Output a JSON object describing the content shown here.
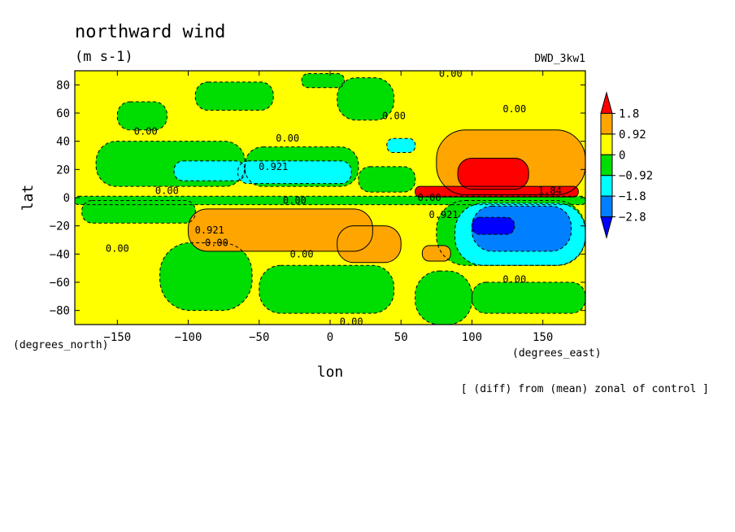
{
  "chart_data": {
    "type": "heatmap",
    "title": "northward wind",
    "units": "(m s-1)",
    "model_label": "DWD_3kw1",
    "xlabel": "lon",
    "ylabel": "lat",
    "x_units": "(degrees_east)",
    "y_units": "(degrees_north)",
    "footnote": "[ (diff) from (mean) zonal of control ]",
    "xlim": [
      -180,
      180
    ],
    "ylim": [
      -90,
      90
    ],
    "x_ticks": [
      -150,
      -100,
      -50,
      0,
      50,
      100,
      150
    ],
    "y_ticks": [
      -80,
      -60,
      -40,
      -20,
      0,
      20,
      40,
      60,
      80
    ],
    "x_tick_labels": [
      "−150",
      "−100",
      "−50",
      "0",
      "50",
      "100",
      "150"
    ],
    "y_tick_labels": [
      "−80",
      "−60",
      "−40",
      "−20",
      "0",
      "20",
      "40",
      "60",
      "80"
    ],
    "colorbar": {
      "levels": [
        "1.8",
        "0.92",
        "0",
        "−0.92",
        "−1.8",
        "−2.8"
      ],
      "colors": [
        "#ff0000",
        "#ffa500",
        "#ffff00",
        "#00dd00",
        "#00ffff",
        "#0080ff",
        "#0000ff"
      ]
    },
    "fill_colors": {
      "high": "#ff0000",
      "mid_high": "#ffa500",
      "pos": "#ffff00",
      "neg": "#00dd00",
      "mid_low": "#00ffff",
      "low": "#0080ff",
      "lowest": "#0000ff"
    },
    "regions": [
      {
        "level": "pos",
        "lon": [
          -180,
          180
        ],
        "lat": [
          -90,
          90
        ]
      },
      {
        "level": "neg",
        "lon": [
          -150,
          -115
        ],
        "lat": [
          48,
          68
        ]
      },
      {
        "level": "neg",
        "lon": [
          -95,
          -40
        ],
        "lat": [
          62,
          82
        ]
      },
      {
        "level": "neg",
        "lon": [
          5,
          45
        ],
        "lat": [
          55,
          85
        ]
      },
      {
        "level": "neg",
        "lon": [
          -20,
          10
        ],
        "lat": [
          78,
          88
        ]
      },
      {
        "level": "neg",
        "lon": [
          -165,
          -60
        ],
        "lat": [
          8,
          40
        ]
      },
      {
        "level": "neg",
        "lon": [
          -60,
          20
        ],
        "lat": [
          8,
          36
        ]
      },
      {
        "level": "neg",
        "lon": [
          20,
          60
        ],
        "lat": [
          4,
          22
        ]
      },
      {
        "level": "mid_low",
        "lon": [
          -110,
          -60
        ],
        "lat": [
          12,
          26
        ]
      },
      {
        "level": "mid_low",
        "lon": [
          -65,
          15
        ],
        "lat": [
          10,
          26
        ]
      },
      {
        "level": "mid_low",
        "lon": [
          40,
          60
        ],
        "lat": [
          32,
          42
        ]
      },
      {
        "level": "neg",
        "lon": [
          -180,
          180
        ],
        "lat": [
          -5,
          1
        ]
      },
      {
        "level": "neg",
        "lon": [
          -175,
          -95
        ],
        "lat": [
          -18,
          -2
        ]
      },
      {
        "level": "neg",
        "lon": [
          -120,
          -55
        ],
        "lat": [
          -80,
          -32
        ]
      },
      {
        "level": "neg",
        "lon": [
          -50,
          45
        ],
        "lat": [
          -82,
          -48
        ]
      },
      {
        "level": "neg",
        "lon": [
          60,
          100
        ],
        "lat": [
          -90,
          -52
        ]
      },
      {
        "level": "neg",
        "lon": [
          100,
          180
        ],
        "lat": [
          -82,
          -60
        ]
      },
      {
        "level": "neg",
        "lon": [
          75,
          180
        ],
        "lat": [
          -48,
          -2
        ]
      },
      {
        "level": "mid_low",
        "lon": [
          88,
          180
        ],
        "lat": [
          -48,
          -4
        ]
      },
      {
        "level": "low",
        "lon": [
          100,
          170
        ],
        "lat": [
          -38,
          -6
        ]
      },
      {
        "level": "lowest",
        "lon": [
          100,
          130
        ],
        "lat": [
          -26,
          -14
        ]
      },
      {
        "level": "mid_high",
        "lon": [
          75,
          180
        ],
        "lat": [
          2,
          48
        ]
      },
      {
        "level": "high",
        "lon": [
          90,
          140
        ],
        "lat": [
          6,
          28
        ]
      },
      {
        "level": "high",
        "lon": [
          60,
          175
        ],
        "lat": [
          0.5,
          8
        ]
      },
      {
        "level": "mid_high",
        "lon": [
          -100,
          30
        ],
        "lat": [
          -38,
          -8
        ]
      },
      {
        "level": "mid_high",
        "lon": [
          5,
          50
        ],
        "lat": [
          -46,
          -20
        ]
      },
      {
        "level": "mid_high",
        "lon": [
          65,
          85
        ],
        "lat": [
          -45,
          -34
        ]
      }
    ],
    "contour_labels": [
      {
        "text": "0.00",
        "lon": 85,
        "lat": 88
      },
      {
        "text": "0.00",
        "lon": 45,
        "lat": 58
      },
      {
        "text": "0.00",
        "lon": 130,
        "lat": 63
      },
      {
        "text": "0.00",
        "lon": -130,
        "lat": 47
      },
      {
        "text": "0.00",
        "lon": -30,
        "lat": 42
      },
      {
        "text": "0.921",
        "lon": -40,
        "lat": 22
      },
      {
        "text": "0.00",
        "lon": -115,
        "lat": 5
      },
      {
        "text": "0.00",
        "lon": -25,
        "lat": -2
      },
      {
        "text": "0.00",
        "lon": 70,
        "lat": 0
      },
      {
        "text": "1.84",
        "lon": 155,
        "lat": 5
      },
      {
        "text": "0.921",
        "lon": 80,
        "lat": -12
      },
      {
        "text": "0.921",
        "lon": -85,
        "lat": -23
      },
      {
        "text": "0.00",
        "lon": -80,
        "lat": -32
      },
      {
        "text": "0.00",
        "lon": -150,
        "lat": -36
      },
      {
        "text": "0.00",
        "lon": -20,
        "lat": -40
      },
      {
        "text": "0.00",
        "lon": 130,
        "lat": -58
      },
      {
        "text": "0.00",
        "lon": 15,
        "lat": -88
      }
    ]
  }
}
